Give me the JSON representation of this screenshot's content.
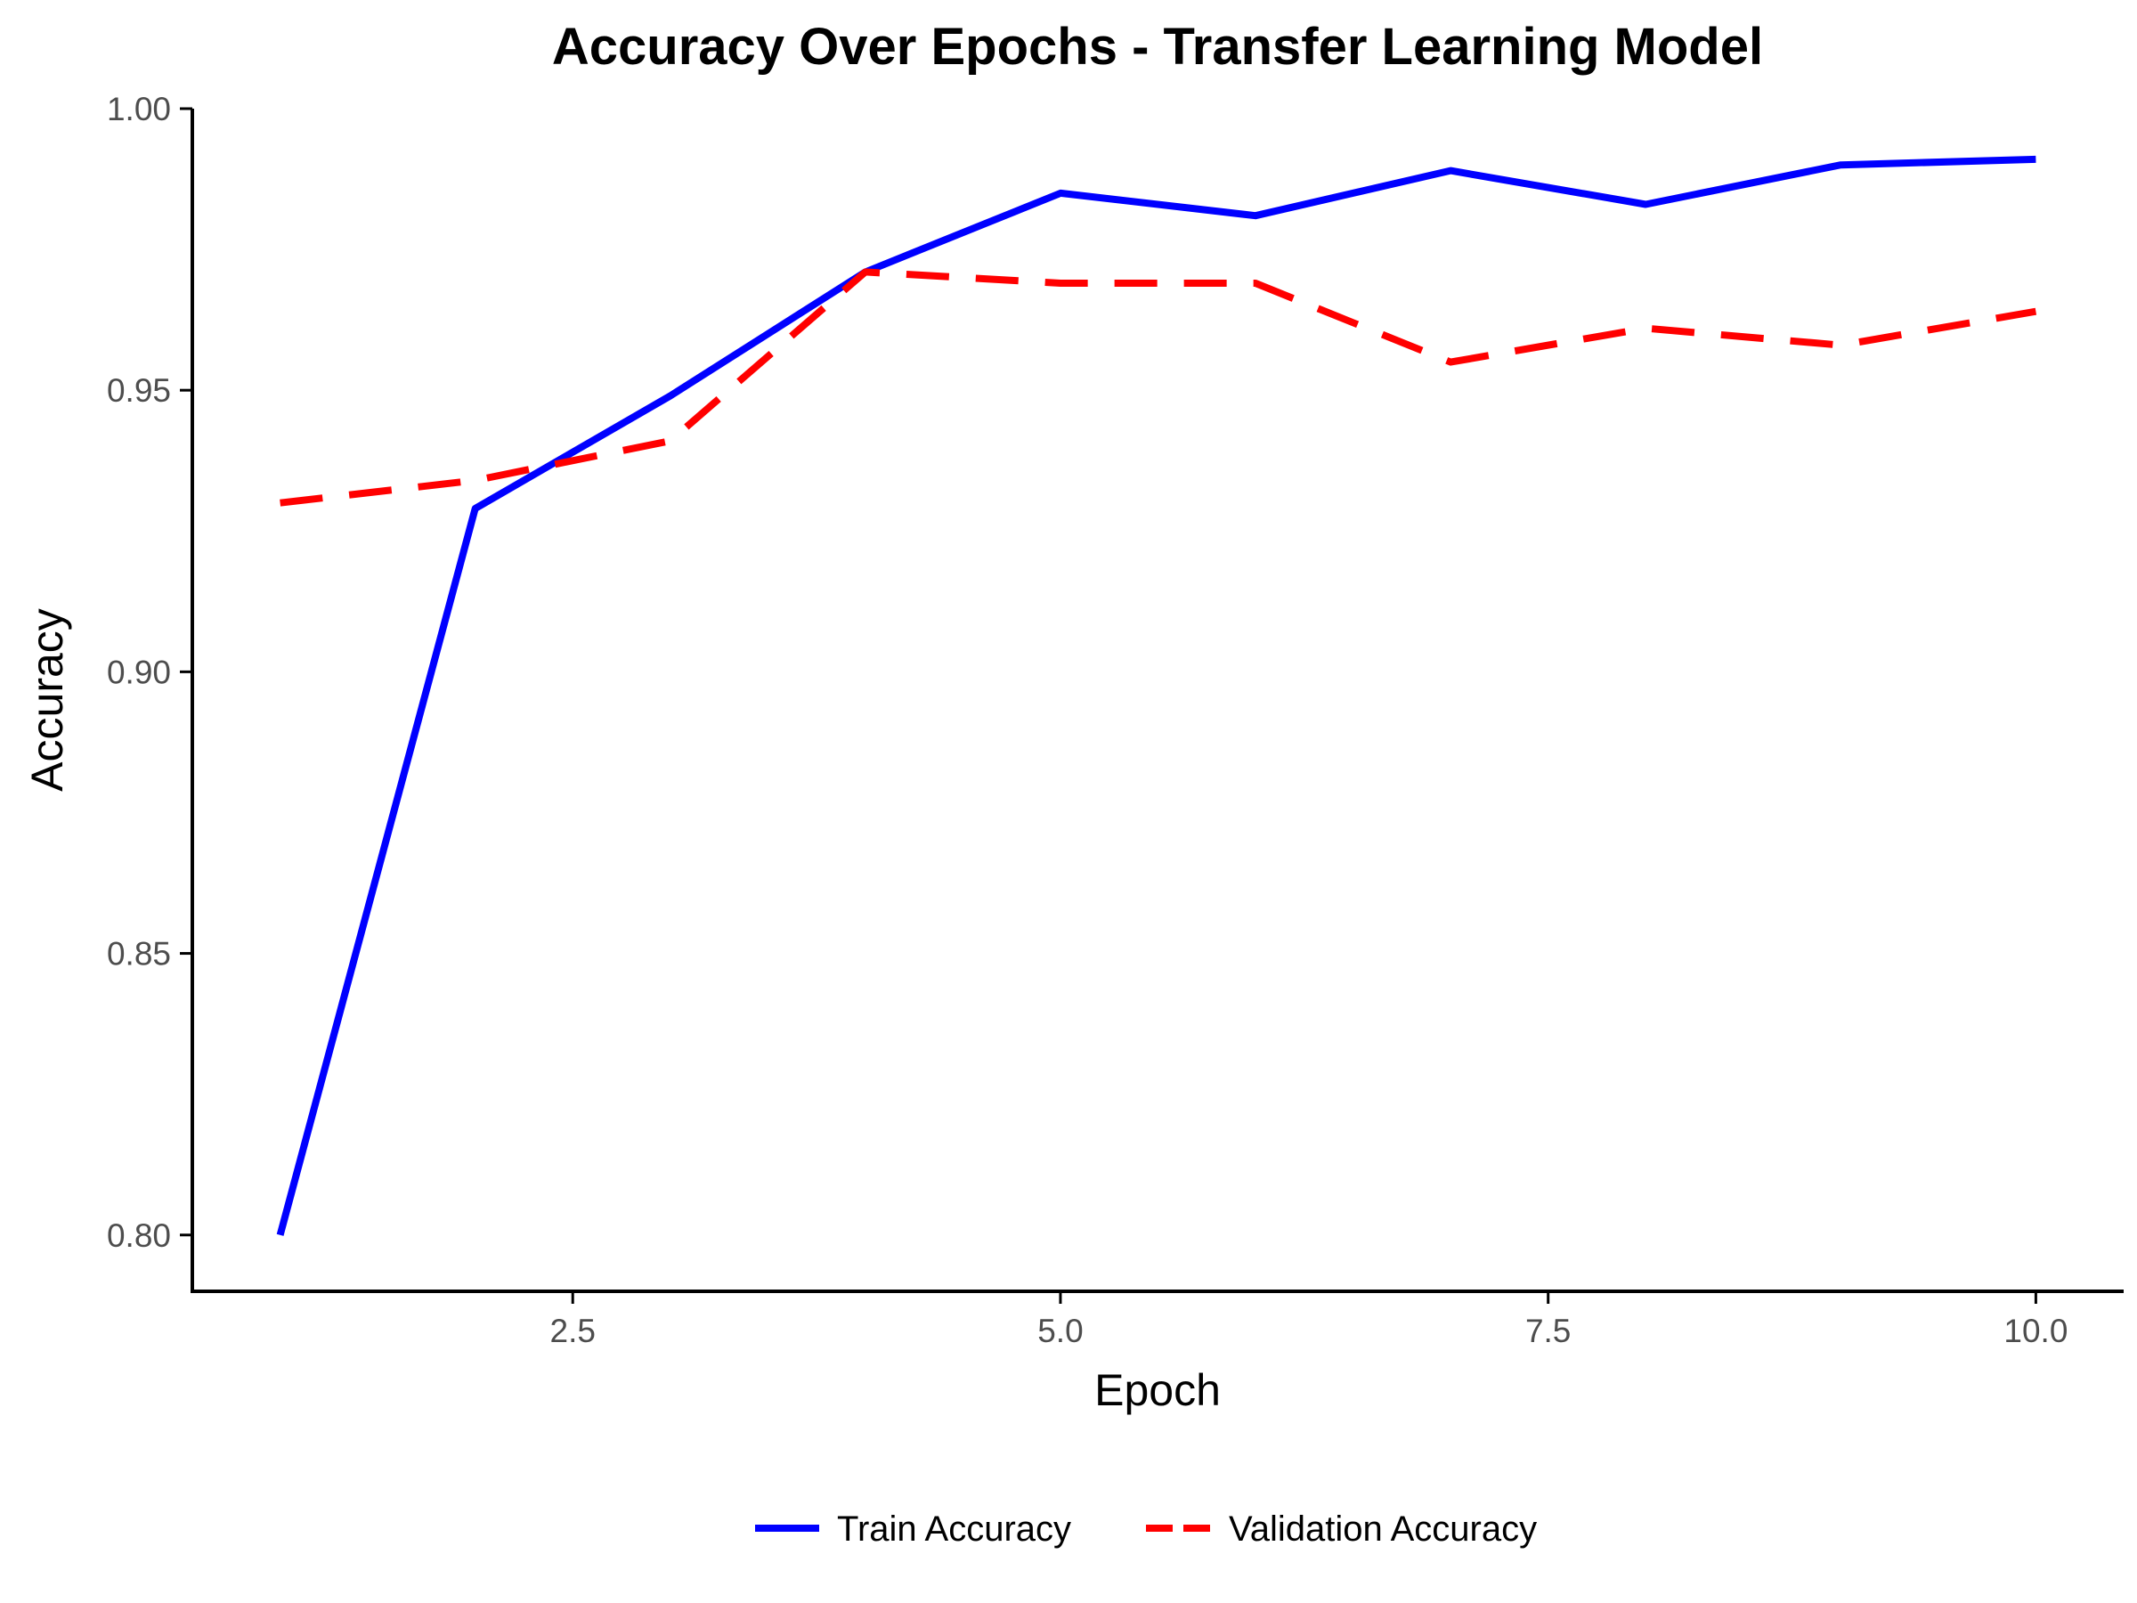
{
  "chart_data": {
    "type": "line",
    "title": "Accuracy Over Epochs - Transfer Learning Model",
    "xlabel": "Epoch",
    "ylabel": "Accuracy",
    "x": [
      1,
      2,
      3,
      4,
      5,
      6,
      7,
      8,
      9,
      10
    ],
    "xlim": [
      0.55,
      10.45
    ],
    "ylim": [
      0.79,
      1.0
    ],
    "x_ticks": [
      2.5,
      5.0,
      7.5,
      10.0
    ],
    "x_tick_labels": [
      "2.5",
      "5.0",
      "7.5",
      "10.0"
    ],
    "y_ticks": [
      0.8,
      0.85,
      0.9,
      0.95,
      1.0
    ],
    "y_tick_labels": [
      "0.80",
      "0.85",
      "0.90",
      "0.95",
      "1.00"
    ],
    "grid": false,
    "legend_position": "bottom",
    "series": [
      {
        "name": "Train Accuracy",
        "color": "#0000ff",
        "style": "solid",
        "values": [
          0.8,
          0.929,
          0.949,
          0.971,
          0.985,
          0.981,
          0.989,
          0.983,
          0.99,
          0.991
        ]
      },
      {
        "name": "Validation Accuracy",
        "color": "#ff0000",
        "style": "dashed",
        "values": [
          0.93,
          0.934,
          0.941,
          0.971,
          0.969,
          0.969,
          0.955,
          0.961,
          0.958,
          0.964
        ]
      }
    ]
  }
}
